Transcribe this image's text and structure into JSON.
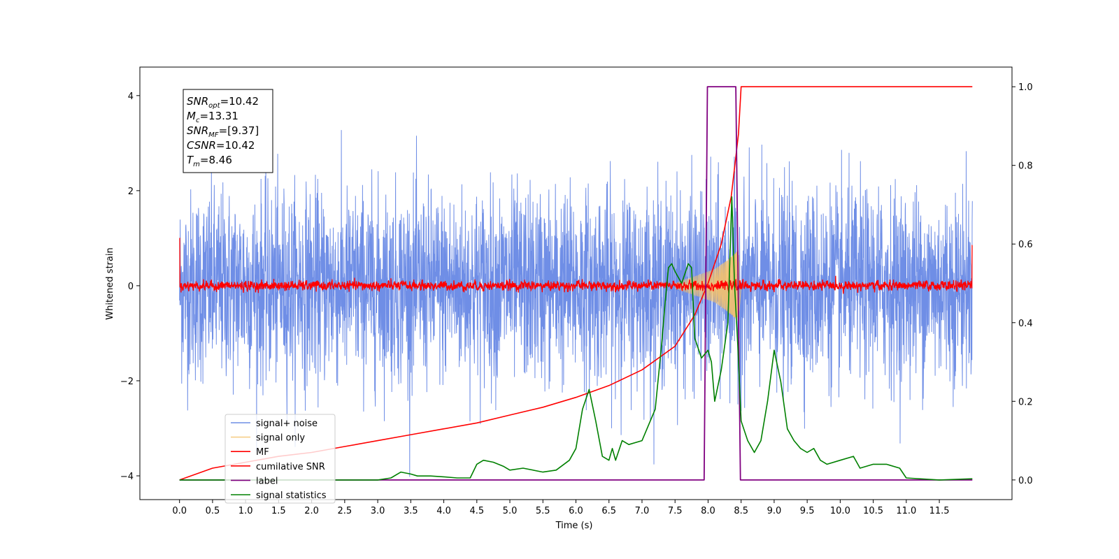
{
  "chart_data": {
    "type": "line",
    "xlabel": "Time (s)",
    "ylabel": "Whitened strain",
    "ylabel_right": "",
    "xlim": [
      -0.6,
      12.6
    ],
    "ylim": [
      -4.5,
      4.6
    ],
    "ylim_right": [
      -0.05,
      1.05
    ],
    "x_ticks": [
      "0.0",
      "0.5",
      "1.0",
      "1.5",
      "2.0",
      "2.5",
      "3.0",
      "3.5",
      "4.0",
      "4.5",
      "5.0",
      "5.5",
      "6.0",
      "6.5",
      "7.0",
      "7.5",
      "8.0",
      "8.5",
      "9.0",
      "9.5",
      "10.0",
      "10.5",
      "11.0",
      "11.5"
    ],
    "y_ticks": [
      "4",
      "2",
      "0",
      "−2",
      "−4"
    ],
    "y_ticks_right": [
      "1.0",
      "0.8",
      "0.6",
      "0.4",
      "0.2",
      "0.0"
    ],
    "grid": false,
    "legend_position": "lower-left",
    "annotation": {
      "lines": [
        {
          "base": "SNR",
          "sub": "opt",
          "value": "=10.42"
        },
        {
          "base": "M",
          "sub": "c",
          "value": "=13.31"
        },
        {
          "base": "SNR",
          "sub": "MF",
          "value": "=[9.37]"
        },
        {
          "base": "CSNR",
          "sub": "",
          "value": "=10.42"
        },
        {
          "base": "T",
          "sub": "m",
          "value": "=8.46"
        }
      ]
    },
    "series": [
      {
        "name": "signal+ noise",
        "axis": "left",
        "color": "#6f8ee6",
        "kind": "noise",
        "x_range": [
          0,
          12.0
        ],
        "amplitude_std": 1.0
      },
      {
        "name": "signal only",
        "axis": "left",
        "color": "#f5c26b",
        "kind": "chirp",
        "envelope": {
          "x": [
            7.5,
            7.8,
            8.1,
            8.3,
            8.46,
            8.5
          ],
          "y": [
            0.05,
            0.2,
            0.35,
            0.55,
            0.75,
            0.0
          ]
        }
      },
      {
        "name": "MF",
        "axis": "left",
        "color": "#ff0000",
        "kind": "noise",
        "x_range": [
          0,
          12.0
        ],
        "amplitude_std": 0.08,
        "edge_spikes": [
          {
            "x": 0.0,
            "y": 1.0
          },
          {
            "x": 12.0,
            "y": 0.85
          }
        ]
      },
      {
        "name": "cumilative SNR",
        "axis": "right",
        "color": "#ff0000",
        "x": [
          0,
          0.5,
          1,
          1.5,
          2,
          2.5,
          3,
          3.5,
          4,
          4.5,
          5,
          5.5,
          6,
          6.5,
          7,
          7.5,
          7.8,
          8.0,
          8.2,
          8.35,
          8.46,
          8.5,
          9,
          10,
          11,
          12
        ],
        "y": [
          0.0,
          0.03,
          0.045,
          0.06,
          0.07,
          0.085,
          0.1,
          0.115,
          0.13,
          0.145,
          0.165,
          0.185,
          0.21,
          0.24,
          0.28,
          0.34,
          0.42,
          0.5,
          0.6,
          0.72,
          0.88,
          1.0,
          1.0,
          1.0,
          1.0,
          1.0
        ]
      },
      {
        "name": "label",
        "axis": "right",
        "color": "#800080",
        "x": [
          0,
          7.94,
          7.99,
          8.42,
          8.49,
          12.0
        ],
        "y": [
          0.0,
          0.0,
          1.0,
          1.0,
          0.0,
          0.0
        ]
      },
      {
        "name": "signal statistics",
        "axis": "right",
        "color": "#008000",
        "x": [
          0,
          3.0,
          3.2,
          3.35,
          3.5,
          3.6,
          3.8,
          4.0,
          4.2,
          4.4,
          4.5,
          4.6,
          4.75,
          4.9,
          5.0,
          5.2,
          5.5,
          5.7,
          5.9,
          6.0,
          6.1,
          6.2,
          6.3,
          6.4,
          6.5,
          6.55,
          6.6,
          6.7,
          6.8,
          7.0,
          7.2,
          7.3,
          7.35,
          7.4,
          7.45,
          7.5,
          7.6,
          7.7,
          7.75,
          7.8,
          7.9,
          8.0,
          8.05,
          8.1,
          8.2,
          8.3,
          8.36,
          8.4,
          8.45,
          8.5,
          8.6,
          8.7,
          8.8,
          8.9,
          9.0,
          9.1,
          9.2,
          9.3,
          9.4,
          9.5,
          9.6,
          9.7,
          9.8,
          10.0,
          10.2,
          10.3,
          10.5,
          10.7,
          10.9,
          11.0,
          11.5,
          12.0
        ],
        "y": [
          0.0,
          0.0,
          0.005,
          0.02,
          0.015,
          0.01,
          0.01,
          0.008,
          0.005,
          0.005,
          0.04,
          0.05,
          0.045,
          0.035,
          0.025,
          0.03,
          0.02,
          0.025,
          0.05,
          0.08,
          0.18,
          0.23,
          0.15,
          0.06,
          0.05,
          0.08,
          0.05,
          0.1,
          0.09,
          0.1,
          0.18,
          0.35,
          0.45,
          0.54,
          0.55,
          0.53,
          0.5,
          0.55,
          0.54,
          0.36,
          0.31,
          0.33,
          0.3,
          0.2,
          0.28,
          0.4,
          0.72,
          0.5,
          0.34,
          0.15,
          0.1,
          0.07,
          0.1,
          0.2,
          0.33,
          0.25,
          0.13,
          0.1,
          0.08,
          0.07,
          0.08,
          0.05,
          0.04,
          0.05,
          0.06,
          0.03,
          0.04,
          0.04,
          0.03,
          0.005,
          0.0,
          0.003
        ]
      }
    ]
  }
}
